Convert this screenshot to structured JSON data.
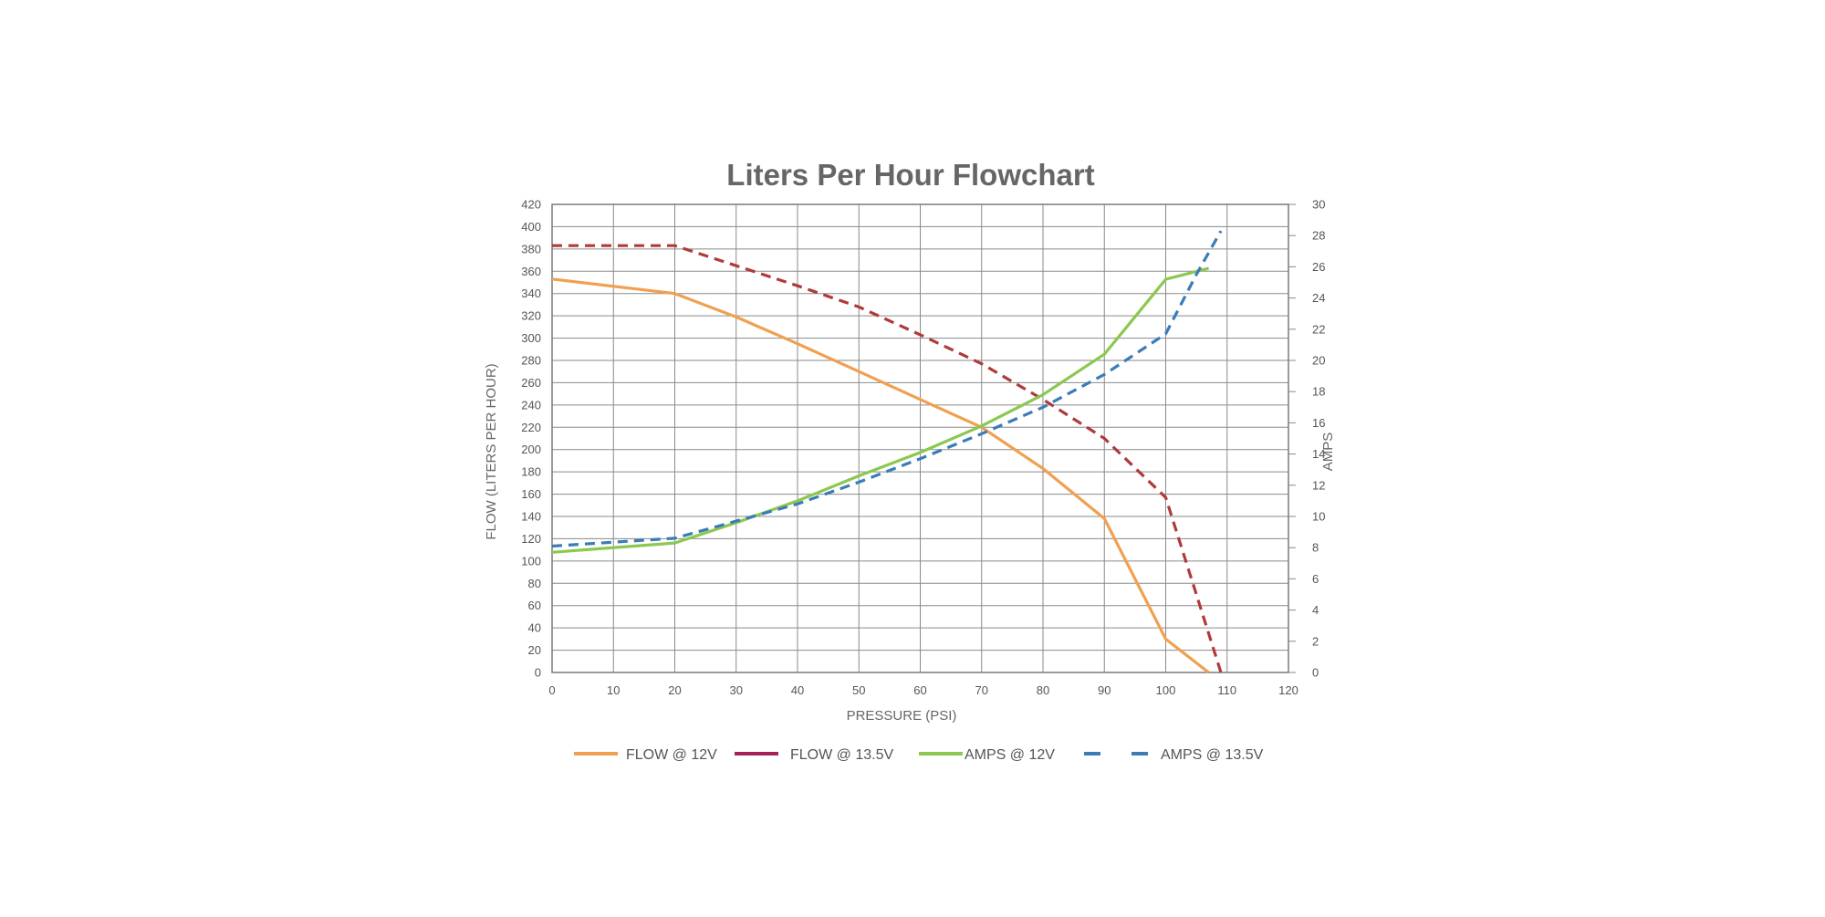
{
  "chart_data": {
    "type": "line",
    "title": "Liters Per Hour Flowchart",
    "xlabel": "PRESSURE (PSI)",
    "ylabel": "FLOW (LITERS PER HOUR)",
    "y2label": "AMPS",
    "xlim": [
      0,
      120
    ],
    "ylim": [
      0,
      420
    ],
    "y2lim": [
      0,
      30
    ],
    "x_ticks": [
      0,
      10,
      20,
      30,
      40,
      50,
      60,
      70,
      80,
      90,
      100,
      110,
      120
    ],
    "y_ticks": [
      0,
      20,
      40,
      60,
      80,
      100,
      120,
      140,
      160,
      180,
      200,
      220,
      240,
      260,
      280,
      300,
      320,
      340,
      360,
      380,
      400,
      420
    ],
    "y2_ticks": [
      0,
      2,
      4,
      6,
      8,
      10,
      12,
      14,
      16,
      18,
      20,
      22,
      24,
      26,
      28,
      30
    ],
    "grid": true,
    "legend_position": "bottom",
    "series": [
      {
        "name": "FLOW @ 12V",
        "axis": "left",
        "color": "#f0a050",
        "dash": false,
        "x": [
          0,
          20,
          30,
          40,
          50,
          60,
          70,
          80,
          90,
          100,
          107
        ],
        "values": [
          353,
          340,
          319,
          295,
          270,
          245,
          220,
          183,
          138,
          30,
          0
        ]
      },
      {
        "name": "FLOW @ 13.5V",
        "axis": "left",
        "color": "#b03a3a",
        "legend_color": "#a8205a",
        "dash": true,
        "x": [
          0,
          20,
          30,
          40,
          50,
          60,
          70,
          80,
          90,
          100,
          105,
          109
        ],
        "values": [
          383,
          383,
          365,
          347,
          328,
          303,
          277,
          245,
          210,
          157,
          70,
          0
        ]
      },
      {
        "name": "AMPS @ 12V",
        "axis": "right",
        "color": "#8cc850",
        "dash": false,
        "x": [
          0,
          20,
          30,
          40,
          50,
          60,
          70,
          80,
          90,
          100,
          107
        ],
        "values": [
          7.7,
          8.3,
          9.6,
          11.0,
          12.6,
          14.1,
          15.8,
          17.8,
          20.4,
          25.2,
          25.9
        ]
      },
      {
        "name": "AMPS @ 13.5V",
        "axis": "right",
        "color": "#3a7cb8",
        "dash": true,
        "x": [
          0,
          20,
          30,
          40,
          50,
          60,
          70,
          80,
          90,
          100,
          105,
          109
        ],
        "values": [
          8.1,
          8.6,
          9.7,
          10.8,
          12.2,
          13.7,
          15.3,
          17.0,
          19.1,
          21.7,
          25.5,
          28.3
        ]
      }
    ]
  }
}
